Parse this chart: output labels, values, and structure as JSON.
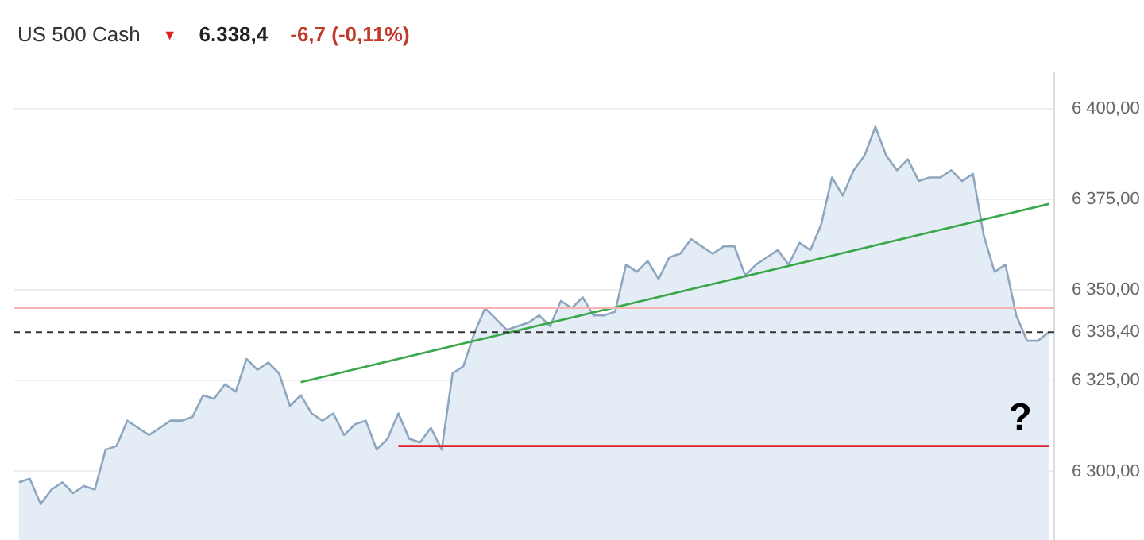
{
  "chart_data": {
    "type": "area",
    "title": "US 500 Cash",
    "subtitle": "6.338,4",
    "annotations": [
      "▼",
      "-6,7 (-0,11%)",
      "?"
    ],
    "categories": [
      null,
      null,
      null,
      null,
      null,
      null,
      null,
      null,
      null,
      null,
      null,
      null,
      null,
      null,
      null,
      null,
      null,
      null,
      null,
      null,
      null,
      null,
      null,
      null,
      null,
      null,
      null,
      null,
      null,
      null,
      null,
      null,
      null,
      null,
      null,
      null,
      null,
      null,
      null,
      null,
      null,
      null,
      null,
      null,
      null,
      null,
      null,
      null,
      null,
      null,
      null,
      null,
      null,
      null,
      null,
      null,
      null,
      null,
      null,
      null,
      null,
      null,
      null,
      null,
      null,
      null,
      null,
      null,
      null,
      null,
      null,
      null,
      null,
      null,
      null,
      null,
      null,
      null,
      null,
      null,
      null,
      null,
      null,
      null,
      null,
      null,
      null,
      null,
      null,
      null,
      null,
      null,
      null,
      null,
      null,
      null
    ],
    "ylim": [
      6280,
      6410
    ],
    "tick_labels": "y",
    "grid": "y",
    "yticks": [
      {
        "value": 6300,
        "label": "6 300,00"
      },
      {
        "value": 6325,
        "label": "6 325,00"
      },
      {
        "value": 6350,
        "label": "6 350,00"
      },
      {
        "value": 6375,
        "label": "6 375,00"
      },
      {
        "value": 6400,
        "label": "6 400,00"
      }
    ],
    "series": [
      {
        "color": "#8ea6bf",
        "values": [
          6297,
          6298,
          6291,
          6295,
          6297,
          6294,
          6296,
          6295,
          6306,
          6307,
          6314,
          6312,
          6310,
          6312,
          6314,
          6314,
          6315,
          6321,
          6320,
          6324,
          6322,
          6331,
          6328,
          6330,
          6327,
          6318,
          6321,
          6316,
          6314,
          6316,
          6310,
          6313,
          6314,
          6306,
          6309,
          6316,
          6309,
          6308,
          6312,
          6306,
          6327,
          6329,
          6338,
          6345,
          6342,
          6339,
          6340,
          6341,
          6343,
          6340,
          6347,
          6345,
          6348,
          6343,
          6343,
          6344,
          6357,
          6355,
          6358,
          6353,
          6359,
          6360,
          6364,
          6362,
          6360,
          6362,
          6362,
          6354,
          6357,
          6359,
          6361,
          6357,
          6363,
          6361,
          6368,
          6381,
          6376,
          6383,
          6387,
          6395,
          6387,
          6383,
          6386,
          6380,
          6381,
          6381,
          6383,
          6380,
          6382,
          6365,
          6355,
          6357,
          6343,
          6336,
          6336,
          6338.4
        ]
      },
      {
        "type": "line",
        "color": "#3aa84a",
        "values": [
          null,
          null,
          null,
          null,
          null,
          null,
          null,
          null,
          null,
          null,
          null,
          null,
          null,
          null,
          null,
          null,
          null,
          null,
          null,
          null,
          null,
          null,
          null,
          null,
          null,
          null,
          6324.6,
          null,
          null,
          null,
          null,
          null,
          null,
          null,
          null,
          null,
          null,
          null,
          null,
          null,
          null,
          null,
          null,
          null,
          null,
          null,
          null,
          null,
          null,
          null,
          null,
          null,
          null,
          null,
          null,
          null,
          null,
          null,
          null,
          null,
          null,
          null,
          null,
          null,
          null,
          null,
          null,
          null,
          null,
          null,
          null,
          null,
          null,
          null,
          null,
          null,
          null,
          null,
          null,
          null,
          null,
          null,
          null,
          null,
          null,
          null,
          null,
          null,
          null,
          null,
          null,
          null,
          null,
          null,
          null,
          6373.7
        ]
      },
      {
        "type": "line",
        "color": "#e0202a",
        "values": [
          null,
          null,
          null,
          null,
          null,
          null,
          null,
          null,
          null,
          null,
          null,
          null,
          null,
          null,
          null,
          null,
          null,
          null,
          null,
          null,
          null,
          null,
          null,
          null,
          null,
          null,
          null,
          null,
          null,
          null,
          null,
          null,
          null,
          null,
          null,
          6307,
          null,
          null,
          null,
          null,
          null,
          null,
          null,
          null,
          null,
          null,
          null,
          null,
          null,
          null,
          null,
          null,
          null,
          null,
          null,
          null,
          null,
          null,
          null,
          null,
          null,
          null,
          null,
          null,
          null,
          null,
          null,
          null,
          null,
          null,
          null,
          null,
          null,
          null,
          null,
          null,
          null,
          null,
          null,
          null,
          null,
          null,
          null,
          null,
          null,
          null,
          null,
          null,
          null,
          null,
          null,
          null,
          null,
          null,
          null,
          6307
        ]
      }
    ],
    "ref_lines": [
      {
        "axis": "y",
        "value": 6345,
        "color": "#f4b4b4",
        "line_style": "solid"
      },
      {
        "axis": "y",
        "value": 6338.4,
        "label": "6 338,40",
        "color": "#333333",
        "line_style": "dashed"
      }
    ]
  }
}
